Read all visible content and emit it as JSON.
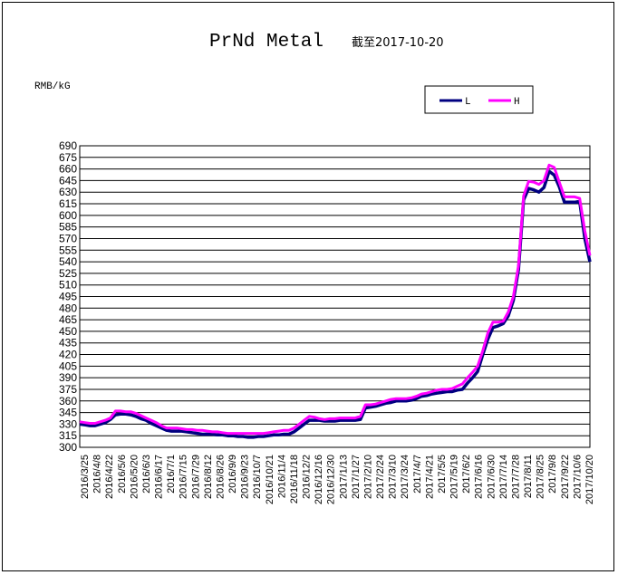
{
  "chart_data": {
    "type": "line",
    "title": "PrNd Metal",
    "subtitle": "截至2017-10-20",
    "ylabel": "RMB/kG",
    "ylim": [
      300,
      690
    ],
    "ystep": 15,
    "grid": true,
    "legend_position": "top-right",
    "x_ticks": [
      "2016/3/25",
      "2016/4/8",
      "2016/4/22",
      "2016/5/6",
      "2016/5/20",
      "2016/6/3",
      "2016/6/17",
      "2016/7/1",
      "2016/7/15",
      "2016/7/29",
      "2016/8/12",
      "2016/8/26",
      "2016/9/9",
      "2016/9/23",
      "2016/10/7",
      "2016/10/21",
      "2016/11/4",
      "2016/11/18",
      "2016/12/2",
      "2016/12/16",
      "2016/12/30",
      "2017/1/13",
      "2017/1/27",
      "2017/2/10",
      "2017/2/24",
      "2017/3/10",
      "2017/3/24",
      "2017/4/7",
      "2017/4/21",
      "2017/5/5",
      "2017/5/19",
      "2017/6/2",
      "2017/6/16",
      "2017/6/30",
      "2017/7/14",
      "2017/7/28",
      "2017/8/11",
      "2017/8/25",
      "2017/9/8",
      "2017/9/22",
      "2017/10/6",
      "2017/10/20"
    ],
    "series": [
      {
        "name": "L",
        "color": "#000080",
        "points": [
          [
            0,
            330
          ],
          [
            1,
            329
          ],
          [
            2,
            328
          ],
          [
            3,
            328
          ],
          [
            4,
            330
          ],
          [
            5,
            332
          ],
          [
            6,
            336
          ],
          [
            7,
            342
          ],
          [
            8,
            343
          ],
          [
            9,
            343
          ],
          [
            10,
            342
          ],
          [
            11,
            340
          ],
          [
            12,
            337
          ],
          [
            13,
            335
          ],
          [
            14,
            331
          ],
          [
            15,
            328
          ],
          [
            16,
            325
          ],
          [
            17,
            322
          ],
          [
            18,
            321
          ],
          [
            19,
            321
          ],
          [
            20,
            321
          ],
          [
            21,
            320
          ],
          [
            22,
            319
          ],
          [
            23,
            318
          ],
          [
            24,
            317
          ],
          [
            25,
            317
          ],
          [
            26,
            317
          ],
          [
            27,
            316
          ],
          [
            28,
            316
          ],
          [
            29,
            315
          ],
          [
            30,
            315
          ],
          [
            31,
            314
          ],
          [
            32,
            314
          ],
          [
            33,
            313
          ],
          [
            34,
            313
          ],
          [
            35,
            314
          ],
          [
            36,
            314
          ],
          [
            37,
            315
          ],
          [
            38,
            316
          ],
          [
            39,
            316
          ],
          [
            40,
            317
          ],
          [
            41,
            317
          ],
          [
            42,
            320
          ],
          [
            43,
            325
          ],
          [
            44,
            330
          ],
          [
            45,
            335
          ],
          [
            46,
            335
          ],
          [
            47,
            335
          ],
          [
            48,
            334
          ],
          [
            49,
            334
          ],
          [
            50,
            334
          ],
          [
            51,
            335
          ],
          [
            52,
            335
          ],
          [
            53,
            335
          ],
          [
            54,
            335
          ],
          [
            55,
            336
          ],
          [
            56,
            351
          ],
          [
            57,
            352
          ],
          [
            58,
            353
          ],
          [
            59,
            355
          ],
          [
            60,
            357
          ],
          [
            61,
            358
          ],
          [
            62,
            360
          ],
          [
            63,
            360
          ],
          [
            64,
            360
          ],
          [
            65,
            361
          ],
          [
            66,
            363
          ],
          [
            67,
            366
          ],
          [
            68,
            367
          ],
          [
            69,
            369
          ],
          [
            70,
            370
          ],
          [
            71,
            371
          ],
          [
            72,
            372
          ],
          [
            73,
            372
          ],
          [
            74,
            374
          ],
          [
            75,
            375
          ],
          [
            76,
            383
          ],
          [
            77,
            390
          ],
          [
            78,
            398
          ],
          [
            79,
            420
          ],
          [
            80,
            440
          ],
          [
            81,
            455
          ],
          [
            82,
            457
          ],
          [
            83,
            460
          ],
          [
            84,
            470
          ],
          [
            85,
            490
          ],
          [
            86,
            530
          ],
          [
            87,
            620
          ],
          [
            88,
            635
          ],
          [
            89,
            633
          ],
          [
            90,
            630
          ],
          [
            91,
            636
          ],
          [
            92,
            657
          ],
          [
            93,
            652
          ],
          [
            94,
            637
          ],
          [
            95,
            617
          ],
          [
            96,
            617
          ],
          [
            97,
            617
          ],
          [
            98,
            618
          ],
          [
            99,
            570
          ],
          [
            100,
            540
          ]
        ]
      },
      {
        "name": "H",
        "color": "#ff00ff",
        "points": [
          [
            0,
            333
          ],
          [
            1,
            332
          ],
          [
            2,
            331
          ],
          [
            3,
            331
          ],
          [
            4,
            333
          ],
          [
            5,
            335
          ],
          [
            6,
            338
          ],
          [
            7,
            347
          ],
          [
            8,
            347
          ],
          [
            9,
            346
          ],
          [
            10,
            346
          ],
          [
            11,
            344
          ],
          [
            12,
            341
          ],
          [
            13,
            338
          ],
          [
            14,
            335
          ],
          [
            15,
            332
          ],
          [
            16,
            328
          ],
          [
            17,
            325
          ],
          [
            18,
            325
          ],
          [
            19,
            325
          ],
          [
            20,
            324
          ],
          [
            21,
            323
          ],
          [
            22,
            323
          ],
          [
            23,
            322
          ],
          [
            24,
            322
          ],
          [
            25,
            321
          ],
          [
            26,
            320
          ],
          [
            27,
            320
          ],
          [
            28,
            319
          ],
          [
            29,
            318
          ],
          [
            30,
            318
          ],
          [
            31,
            318
          ],
          [
            32,
            318
          ],
          [
            33,
            318
          ],
          [
            34,
            318
          ],
          [
            35,
            318
          ],
          [
            36,
            318
          ],
          [
            37,
            319
          ],
          [
            38,
            320
          ],
          [
            39,
            321
          ],
          [
            40,
            322
          ],
          [
            41,
            322
          ],
          [
            42,
            325
          ],
          [
            43,
            330
          ],
          [
            44,
            335
          ],
          [
            45,
            340
          ],
          [
            46,
            339
          ],
          [
            47,
            337
          ],
          [
            48,
            336
          ],
          [
            49,
            337
          ],
          [
            50,
            337
          ],
          [
            51,
            338
          ],
          [
            52,
            338
          ],
          [
            53,
            338
          ],
          [
            54,
            338
          ],
          [
            55,
            340
          ],
          [
            56,
            355
          ],
          [
            57,
            355
          ],
          [
            58,
            356
          ],
          [
            59,
            358
          ],
          [
            60,
            360
          ],
          [
            61,
            362
          ],
          [
            62,
            363
          ],
          [
            63,
            363
          ],
          [
            64,
            363
          ],
          [
            65,
            364
          ],
          [
            66,
            366
          ],
          [
            67,
            369
          ],
          [
            68,
            370
          ],
          [
            69,
            372
          ],
          [
            70,
            374
          ],
          [
            71,
            375
          ],
          [
            72,
            375
          ],
          [
            73,
            376
          ],
          [
            74,
            379
          ],
          [
            75,
            382
          ],
          [
            76,
            390
          ],
          [
            77,
            397
          ],
          [
            78,
            405
          ],
          [
            79,
            425
          ],
          [
            80,
            448
          ],
          [
            81,
            462
          ],
          [
            82,
            462
          ],
          [
            83,
            463
          ],
          [
            84,
            475
          ],
          [
            85,
            495
          ],
          [
            86,
            535
          ],
          [
            87,
            625
          ],
          [
            88,
            644
          ],
          [
            89,
            643
          ],
          [
            90,
            640
          ],
          [
            91,
            645
          ],
          [
            92,
            665
          ],
          [
            93,
            662
          ],
          [
            94,
            643
          ],
          [
            95,
            624
          ],
          [
            96,
            624
          ],
          [
            97,
            624
          ],
          [
            98,
            622
          ],
          [
            99,
            580
          ],
          [
            100,
            548
          ]
        ]
      }
    ]
  }
}
